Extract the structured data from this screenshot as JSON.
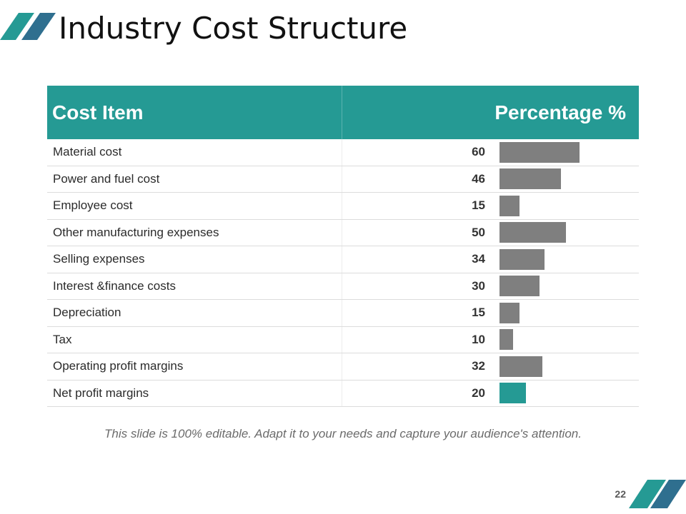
{
  "title": "Industry Cost Structure",
  "colors": {
    "accent": "#259a94",
    "accent_dark": "#2f6f8f",
    "bar": "#7f7f7f"
  },
  "table": {
    "header": {
      "item": "Cost Item",
      "percentage": "Percentage %"
    },
    "rows": [
      {
        "label": "Material cost",
        "value": 60
      },
      {
        "label": "Power and fuel cost",
        "value": 46
      },
      {
        "label": "Employee cost",
        "value": 15
      },
      {
        "label": "Other manufacturing expenses",
        "value": 50
      },
      {
        "label": "Selling expenses",
        "value": 34
      },
      {
        "label": "Interest &finance costs",
        "value": 30
      },
      {
        "label": "Depreciation",
        "value": 15
      },
      {
        "label": "Tax",
        "value": 10
      },
      {
        "label": "Operating profit margins",
        "value": 32
      },
      {
        "label": "Net profit margins",
        "value": 20,
        "highlight": true
      }
    ]
  },
  "footnote": "This slide is 100% editable. Adapt it to your needs and capture your audience's attention.",
  "page_number": "22"
}
